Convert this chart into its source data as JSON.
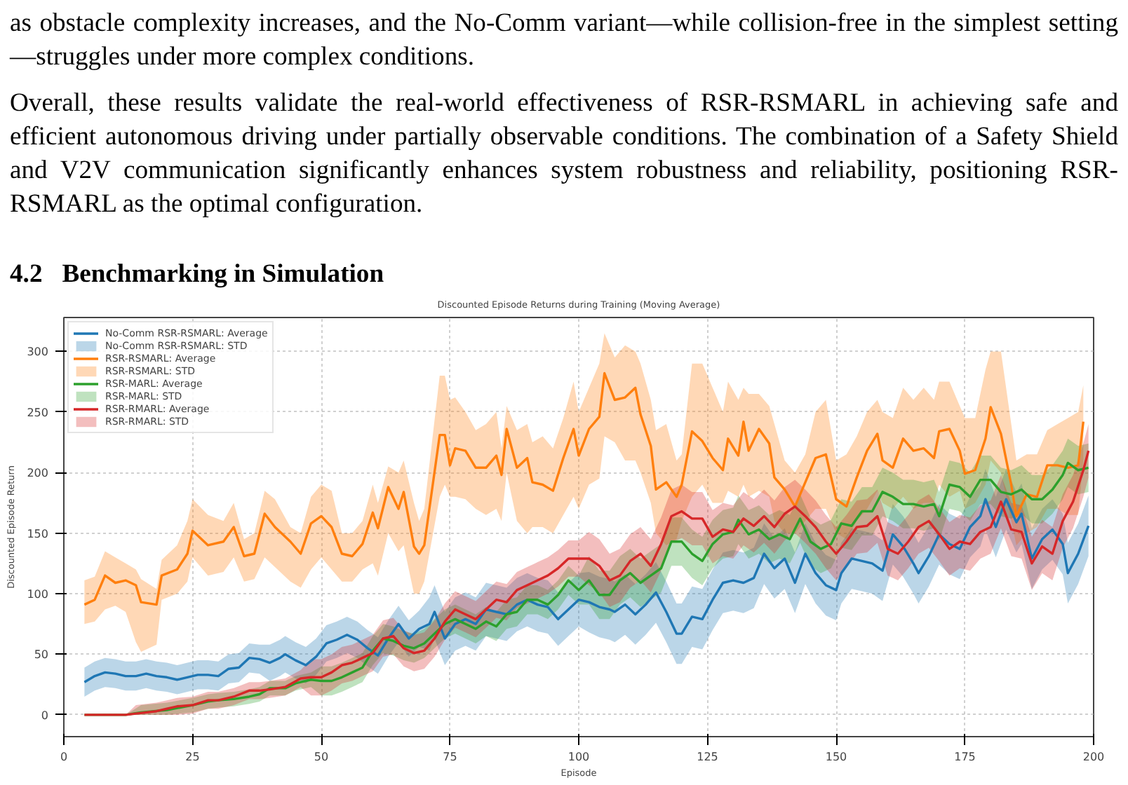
{
  "chart_data": {
    "type": "line",
    "title": "Discounted Episode Returns during Training (Moving Average)",
    "xlabel": "Episode",
    "ylabel": "Discounted Episode Return",
    "annotations": [
      "as obstacle complexity increases, and the No-Comm variant—while collision-free in the simplest setting—struggles under more complex conditions.",
      "Overall, these results validate the real-world effectiveness of RSR-RSMARL in achieving safe and efficient autonomous driving under partially observable conditions.  The combination of a Safety Shield and V2V communication significantly enhances system robustness and reliability, positioning RSR-RSMARL as the optimal configuration.",
      "4.2   Benchmarking in Simulation"
    ],
    "xlim": [
      0,
      200
    ],
    "ylim": [
      -18,
      328
    ],
    "xticks": [
      0,
      25,
      50,
      75,
      100,
      125,
      150,
      175,
      200
    ],
    "yticks": [
      0,
      50,
      100,
      150,
      200,
      250,
      300
    ],
    "grid": true,
    "legend": "top left",
    "marker": "none",
    "line_style": "solid",
    "series": [
      {
        "name": "No-Comm RSR-RSMARL: Average",
        "color": "#1f77b4",
        "x": [
          4,
          6,
          8,
          10,
          12,
          14,
          16,
          18,
          20,
          22,
          24,
          26,
          28,
          30,
          32,
          34,
          36,
          38,
          40,
          42,
          43,
          45,
          47,
          49,
          51,
          53,
          55,
          57,
          59,
          61,
          63,
          65,
          67,
          69,
          71,
          72,
          74,
          76,
          78,
          80,
          82,
          84,
          86,
          88,
          90,
          92,
          94,
          96,
          98,
          100,
          102,
          104,
          106,
          107,
          109,
          111,
          113,
          115,
          117,
          119,
          120,
          122,
          124,
          126,
          128,
          130,
          132,
          134,
          136,
          138,
          140,
          142,
          144,
          146,
          148,
          150,
          151,
          153,
          155,
          157,
          159,
          161,
          163,
          165,
          166,
          168,
          170,
          172,
          174,
          176,
          178,
          179,
          181,
          183,
          185,
          186,
          188,
          190,
          192,
          194,
          195,
          197,
          199
        ],
        "values": [
          27,
          32,
          35,
          34,
          32,
          32,
          34,
          32,
          31,
          29,
          31,
          33,
          33,
          32,
          38,
          39,
          47,
          46,
          43,
          47,
          50,
          45,
          41,
          48,
          59,
          62,
          66,
          62,
          55,
          49,
          63,
          75,
          63,
          71,
          75,
          85,
          63,
          75,
          79,
          75,
          87,
          85,
          83,
          91,
          95,
          91,
          89,
          79,
          87,
          95,
          93,
          89,
          87,
          85,
          91,
          83,
          91,
          101,
          85,
          67,
          67,
          81,
          79,
          95,
          109,
          111,
          109,
          113,
          133,
          121,
          129,
          109,
          133,
          117,
          107,
          103,
          117,
          129,
          127,
          125,
          119,
          149,
          139,
          125,
          117,
          131,
          149,
          141,
          137,
          155,
          164,
          178,
          155,
          178,
          159,
          166,
          129,
          145,
          153,
          141,
          117,
          133,
          156
        ],
        "lower": [
          15,
          20,
          23,
          22,
          20,
          20,
          22,
          20,
          19,
          17,
          19,
          21,
          21,
          20,
          26,
          27,
          35,
          34,
          28,
          32,
          35,
          30,
          26,
          33,
          44,
          47,
          51,
          47,
          40,
          34,
          48,
          60,
          48,
          56,
          53,
          63,
          41,
          53,
          57,
          53,
          65,
          63,
          61,
          69,
          73,
          69,
          67,
          57,
          65,
          73,
          68,
          64,
          62,
          60,
          66,
          58,
          66,
          76,
          60,
          42,
          42,
          56,
          54,
          70,
          84,
          86,
          84,
          88,
          108,
          96,
          104,
          84,
          108,
          92,
          82,
          78,
          92,
          104,
          102,
          100,
          94,
          124,
          114,
          100,
          92,
          106,
          124,
          116,
          112,
          130,
          139,
          153,
          130,
          153,
          134,
          141,
          104,
          120,
          128,
          116,
          92,
          108,
          131
        ],
        "upper": [
          39,
          44,
          47,
          46,
          44,
          44,
          46,
          44,
          43,
          41,
          43,
          45,
          45,
          44,
          50,
          51,
          59,
          58,
          58,
          62,
          65,
          60,
          56,
          63,
          74,
          77,
          81,
          77,
          70,
          64,
          78,
          90,
          78,
          86,
          97,
          107,
          85,
          97,
          101,
          97,
          109,
          107,
          105,
          113,
          117,
          113,
          111,
          101,
          109,
          117,
          118,
          114,
          112,
          110,
          116,
          108,
          116,
          126,
          110,
          92,
          92,
          106,
          104,
          120,
          134,
          136,
          134,
          138,
          158,
          146,
          154,
          134,
          158,
          142,
          132,
          128,
          142,
          154,
          152,
          150,
          144,
          174,
          164,
          150,
          142,
          156,
          174,
          166,
          162,
          180,
          189,
          203,
          180,
          203,
          184,
          191,
          154,
          170,
          178,
          166,
          142,
          158,
          181
        ]
      },
      {
        "name": "No-Comm RSR-RSMARL: STD",
        "type": "area",
        "color": "#1f77b4"
      },
      {
        "name": "RSR-RSMARL: Average",
        "color": "#ff7f0e",
        "x": [
          4,
          6,
          8,
          10,
          12,
          14,
          15,
          18,
          19,
          22,
          24,
          25,
          28,
          31,
          33,
          35,
          37,
          39,
          41,
          44,
          46,
          48,
          50,
          52,
          54,
          56,
          58,
          60,
          61,
          63,
          65,
          66,
          68,
          69,
          70,
          73,
          74,
          75,
          76,
          78,
          80,
          82,
          84,
          85,
          86,
          88,
          90,
          91,
          93,
          95,
          97,
          99,
          100,
          102,
          104,
          105,
          107,
          109,
          111,
          112,
          114,
          115,
          117,
          119,
          120,
          122,
          124,
          126,
          128,
          129,
          131,
          132,
          133,
          135,
          137,
          138,
          140,
          142,
          144,
          146,
          148,
          150,
          152,
          154,
          156,
          158,
          159,
          161,
          163,
          165,
          167,
          169,
          170,
          172,
          174,
          175,
          177,
          179,
          180,
          182,
          184,
          185,
          187,
          189,
          191,
          193,
          195,
          197,
          198
        ],
        "values": [
          91,
          95,
          115,
          109,
          111,
          107,
          93,
          91,
          115,
          120,
          133,
          152,
          140,
          143,
          155,
          131,
          133,
          166,
          155,
          143,
          133,
          158,
          164,
          155,
          133,
          131,
          141,
          167,
          154,
          188,
          170,
          184,
          139,
          133,
          140,
          231,
          231,
          206,
          220,
          218,
          204,
          204,
          214,
          198,
          236,
          204,
          212,
          192,
          190,
          185,
          212,
          236,
          214,
          236,
          246,
          282,
          260,
          262,
          270,
          248,
          222,
          186,
          192,
          180,
          190,
          234,
          226,
          212,
          202,
          228,
          214,
          242,
          218,
          236,
          224,
          196,
          186,
          172,
          192,
          212,
          215,
          178,
          172,
          196,
          218,
          232,
          210,
          204,
          228,
          218,
          220,
          212,
          234,
          236,
          218,
          199,
          202,
          228,
          254,
          232,
          190,
          164,
          182,
          180,
          206,
          206,
          204,
          206,
          242
        ],
        "lower": [
          75,
          77,
          87,
          90,
          85,
          60,
          52,
          58,
          95,
          100,
          110,
          130,
          115,
          118,
          130,
          110,
          112,
          130,
          122,
          110,
          105,
          120,
          130,
          120,
          110,
          110,
          120,
          125,
          115,
          150,
          135,
          140,
          100,
          100,
          110,
          180,
          190,
          180,
          180,
          178,
          170,
          165,
          170,
          160,
          200,
          160,
          150,
          155,
          155,
          150,
          165,
          180,
          170,
          190,
          195,
          230,
          225,
          210,
          210,
          200,
          175,
          150,
          140,
          145,
          160,
          180,
          190,
          175,
          175,
          185,
          180,
          190,
          180,
          185,
          180,
          160,
          150,
          150,
          160,
          170,
          170,
          150,
          145,
          160,
          170,
          185,
          175,
          170,
          180,
          170,
          175,
          175,
          190,
          180,
          185,
          170,
          175,
          190,
          210,
          200,
          160,
          140,
          150,
          155,
          170,
          170,
          165,
          165,
          210
        ],
        "upper": [
          111,
          114,
          135,
          130,
          125,
          120,
          112,
          104,
          128,
          140,
          160,
          178,
          165,
          160,
          175,
          145,
          150,
          185,
          178,
          155,
          150,
          180,
          190,
          185,
          150,
          150,
          160,
          190,
          175,
          205,
          200,
          210,
          175,
          160,
          170,
          280,
          280,
          260,
          262,
          250,
          235,
          240,
          250,
          220,
          255,
          235,
          240,
          225,
          230,
          220,
          245,
          275,
          250,
          270,
          290,
          315,
          295,
          305,
          300,
          290,
          260,
          235,
          240,
          210,
          215,
          290,
          290,
          270,
          250,
          275,
          260,
          270,
          265,
          265,
          255,
          240,
          210,
          200,
          215,
          250,
          260,
          210,
          215,
          230,
          250,
          260,
          250,
          245,
          270,
          260,
          270,
          260,
          275,
          275,
          255,
          245,
          245,
          285,
          300,
          300,
          240,
          210,
          215,
          215,
          235,
          240,
          245,
          250,
          272
        ]
      },
      {
        "name": "RSR-RSMARL: STD",
        "type": "area",
        "color": "#ff7f0e"
      },
      {
        "name": "RSR-MARL: Average",
        "color": "#2ca02c",
        "x": [
          4,
          8,
          12,
          15,
          20,
          25,
          28,
          30,
          33,
          36,
          38,
          40,
          43,
          45,
          48,
          50,
          52,
          54,
          56,
          58,
          60,
          62,
          64,
          66,
          68,
          70,
          72,
          74,
          76,
          78,
          80,
          82,
          84,
          86,
          88,
          90,
          92,
          94,
          96,
          98,
          100,
          102,
          104,
          106,
          108,
          110,
          112,
          114,
          116,
          118,
          120,
          122,
          124,
          126,
          128,
          130,
          131,
          133,
          135,
          137,
          139,
          141,
          143,
          145,
          147,
          149,
          151,
          153,
          155,
          157,
          159,
          161,
          163,
          165,
          167,
          169,
          170,
          172,
          174,
          176,
          178,
          180,
          182,
          184,
          186,
          188,
          190,
          192,
          194,
          195,
          197,
          199
        ],
        "values": [
          0,
          0,
          0,
          2,
          4,
          8,
          11,
          12,
          13,
          15,
          17,
          22,
          22,
          26,
          29,
          28,
          28,
          31,
          35,
          39,
          53,
          63,
          61,
          57,
          55,
          59,
          67,
          75,
          79,
          75,
          71,
          77,
          73,
          83,
          85,
          95,
          95,
          91,
          99,
          111,
          103,
          111,
          99,
          99,
          111,
          117,
          109,
          115,
          121,
          143,
          143,
          133,
          127,
          141,
          149,
          151,
          161,
          149,
          153,
          145,
          149,
          145,
          162,
          143,
          137,
          141,
          158,
          156,
          168,
          168,
          184,
          180,
          174,
          174,
          172,
          174,
          164,
          190,
          188,
          180,
          194,
          194,
          184,
          182,
          186,
          178,
          178,
          186,
          198,
          208,
          202,
          204
        ],
        "lower": [
          0,
          0,
          0,
          0,
          0,
          2,
          5,
          6,
          7,
          9,
          11,
          16,
          16,
          20,
          23,
          16,
          16,
          19,
          23,
          27,
          41,
          51,
          49,
          45,
          43,
          47,
          55,
          63,
          67,
          63,
          59,
          65,
          61,
          71,
          73,
          83,
          83,
          79,
          87,
          99,
          91,
          91,
          79,
          79,
          91,
          97,
          89,
          95,
          101,
          123,
          123,
          113,
          107,
          121,
          129,
          131,
          141,
          129,
          133,
          125,
          129,
          125,
          142,
          123,
          117,
          121,
          138,
          136,
          148,
          148,
          164,
          160,
          154,
          154,
          152,
          154,
          144,
          170,
          168,
          160,
          174,
          174,
          164,
          162,
          166,
          158,
          158,
          166,
          178,
          188,
          182,
          184
        ],
        "upper": [
          0,
          0,
          0,
          8,
          10,
          14,
          17,
          18,
          19,
          21,
          23,
          28,
          28,
          32,
          35,
          40,
          40,
          43,
          47,
          51,
          65,
          75,
          73,
          69,
          67,
          71,
          79,
          87,
          91,
          87,
          83,
          89,
          85,
          95,
          97,
          107,
          107,
          103,
          111,
          123,
          115,
          131,
          119,
          119,
          131,
          137,
          129,
          135,
          141,
          163,
          163,
          153,
          147,
          161,
          169,
          171,
          181,
          169,
          173,
          165,
          169,
          165,
          182,
          163,
          157,
          161,
          178,
          176,
          188,
          188,
          204,
          200,
          194,
          194,
          192,
          194,
          184,
          210,
          208,
          200,
          214,
          214,
          204,
          202,
          206,
          198,
          198,
          206,
          218,
          228,
          222,
          224
        ]
      },
      {
        "name": "RSR-MARL: STD",
        "type": "area",
        "color": "#2ca02c"
      },
      {
        "name": "RSR-RMARL: Average",
        "color": "#d62728",
        "x": [
          4,
          8,
          12,
          14,
          18,
          20,
          22,
          25,
          28,
          30,
          33,
          36,
          38,
          40,
          43,
          46,
          48,
          50,
          52,
          54,
          56,
          58,
          60,
          62,
          64,
          66,
          68,
          70,
          72,
          74,
          76,
          78,
          80,
          82,
          84,
          86,
          88,
          90,
          92,
          94,
          96,
          98,
          100,
          102,
          104,
          106,
          108,
          110,
          112,
          114,
          116,
          118,
          120,
          122,
          124,
          126,
          128,
          130,
          132,
          134,
          136,
          138,
          140,
          142,
          144,
          146,
          148,
          150,
          152,
          154,
          156,
          158,
          160,
          162,
          164,
          166,
          168,
          170,
          172,
          174,
          176,
          178,
          180,
          182,
          184,
          186,
          188,
          190,
          192,
          194,
          196,
          198,
          199
        ],
        "values": [
          0,
          0,
          0,
          1,
          3,
          5,
          7,
          8,
          12,
          12,
          15,
          20,
          20,
          21,
          23,
          30,
          31,
          31,
          35,
          41,
          43,
          47,
          51,
          63,
          65,
          55,
          51,
          53,
          63,
          77,
          87,
          83,
          79,
          87,
          95,
          93,
          103,
          107,
          111,
          115,
          121,
          129,
          129,
          129,
          123,
          111,
          115,
          127,
          133,
          123,
          141,
          164,
          168,
          162,
          162,
          147,
          153,
          151,
          162,
          156,
          164,
          155,
          166,
          172,
          164,
          155,
          143,
          133,
          143,
          155,
          156,
          164,
          137,
          133,
          143,
          155,
          160,
          149,
          137,
          143,
          141,
          151,
          155,
          176,
          153,
          151,
          125,
          139,
          133,
          160,
          176,
          202,
          218
        ],
        "lower": [
          0,
          0,
          0,
          0,
          0,
          0,
          0,
          1,
          5,
          5,
          8,
          13,
          13,
          14,
          16,
          23,
          16,
          16,
          20,
          26,
          28,
          32,
          36,
          48,
          50,
          40,
          36,
          38,
          48,
          62,
          72,
          68,
          64,
          72,
          80,
          78,
          88,
          92,
          96,
          100,
          106,
          114,
          114,
          107,
          101,
          89,
          93,
          105,
          111,
          101,
          119,
          142,
          146,
          140,
          140,
          125,
          131,
          129,
          140,
          134,
          142,
          133,
          144,
          150,
          142,
          133,
          121,
          111,
          121,
          133,
          134,
          142,
          115,
          111,
          121,
          133,
          138,
          127,
          115,
          121,
          119,
          129,
          133,
          154,
          131,
          129,
          103,
          117,
          111,
          138,
          154,
          180,
          196
        ],
        "upper": [
          0,
          0,
          0,
          8,
          10,
          12,
          14,
          15,
          19,
          19,
          22,
          27,
          27,
          28,
          30,
          37,
          46,
          46,
          50,
          56,
          58,
          62,
          66,
          78,
          80,
          70,
          66,
          68,
          78,
          92,
          102,
          98,
          94,
          102,
          110,
          108,
          118,
          122,
          126,
          130,
          136,
          144,
          144,
          151,
          145,
          133,
          137,
          149,
          155,
          145,
          163,
          186,
          190,
          184,
          184,
          169,
          175,
          173,
          184,
          178,
          186,
          177,
          188,
          194,
          186,
          177,
          165,
          155,
          165,
          177,
          178,
          186,
          159,
          155,
          165,
          177,
          182,
          171,
          159,
          165,
          163,
          173,
          177,
          198,
          175,
          173,
          147,
          161,
          155,
          182,
          198,
          224,
          240
        ]
      },
      {
        "name": "RSR-RMARL: STD",
        "type": "area",
        "color": "#d62728"
      }
    ]
  }
}
